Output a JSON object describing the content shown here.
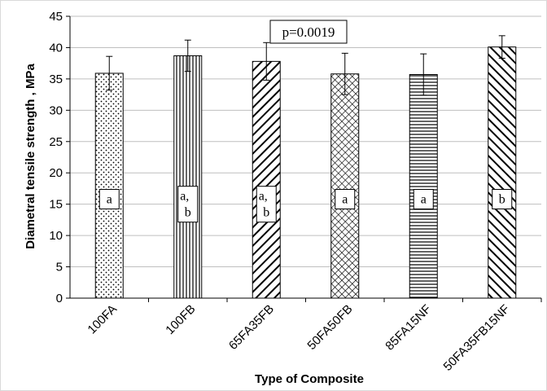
{
  "chart_data": {
    "type": "bar",
    "categories": [
      "100FA",
      "100FB",
      "65FA35FB",
      "50FA50FB",
      "85FA15NF",
      "50FA35FB15NF"
    ],
    "values": [
      35.9,
      38.7,
      37.8,
      35.8,
      35.7,
      40.1
    ],
    "errors": [
      2.7,
      2.5,
      3.0,
      3.3,
      3.3,
      1.8
    ],
    "significance_letters": [
      [
        "a"
      ],
      [
        "a,",
        "b"
      ],
      [
        "a,",
        "b"
      ],
      [
        "a"
      ],
      [
        "a"
      ],
      [
        "b"
      ]
    ],
    "fill_patterns": [
      "dots",
      "vertical-lines",
      "diagonal-down",
      "crosshatch",
      "horizontal-lines",
      "diagonal-up"
    ],
    "annotation": "p=0.0019",
    "xlabel": "Type of Composite",
    "ylabel": "Diametral tensile strength , MPa",
    "ylim": [
      0,
      45
    ],
    "yticks": [
      0,
      5,
      10,
      15,
      20,
      25,
      30,
      35,
      40,
      45
    ],
    "grid": true,
    "legend": "none"
  }
}
